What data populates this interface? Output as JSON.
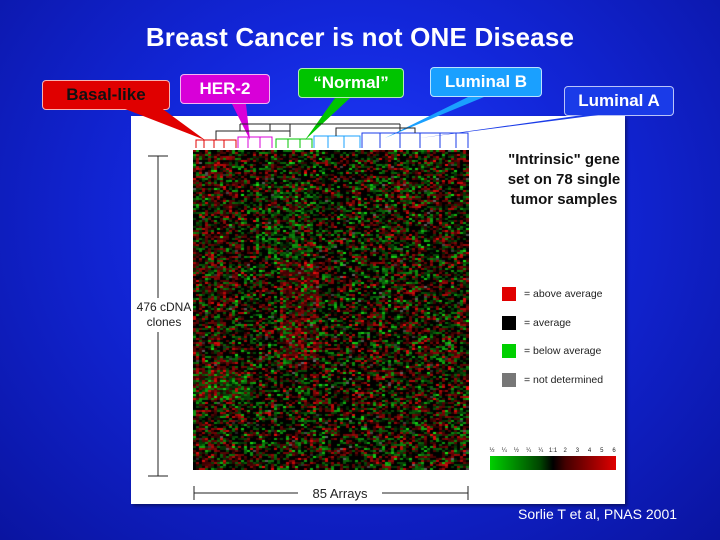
{
  "title": "Breast Cancer is not ONE Disease",
  "callouts": {
    "basal": "Basal-like",
    "her2": "HER-2",
    "normal": "“Normal”",
    "luminal_b": "Luminal B",
    "luminal_a": "Luminal A"
  },
  "figure": {
    "gene_set_text": "\"Intrinsic\" gene set on 78 single tumor samples",
    "row_label_line1": "476 cDNA",
    "row_label_line2": "clones",
    "column_label": "85 Arrays",
    "legend": [
      {
        "label": "= above average",
        "color": "#e00000"
      },
      {
        "label": "= average",
        "color": "#000000"
      },
      {
        "label": "= below average",
        "color": "#00d000"
      },
      {
        "label": "= not determined",
        "color": "#777777"
      }
    ],
    "scale_ticks": [
      "½",
      "¼",
      "½",
      "¼",
      "¼",
      "1:1",
      "2",
      "3",
      "4",
      "5",
      "6"
    ]
  },
  "citation": "Sorlie T et al, PNAS 2001",
  "colors": {
    "background": "#1226d8",
    "basal": "#e00000",
    "her2": "#d800d8",
    "normal": "#00c400",
    "luminal_b": "#1aa0ff",
    "luminal_a": "#1a3be8"
  }
}
